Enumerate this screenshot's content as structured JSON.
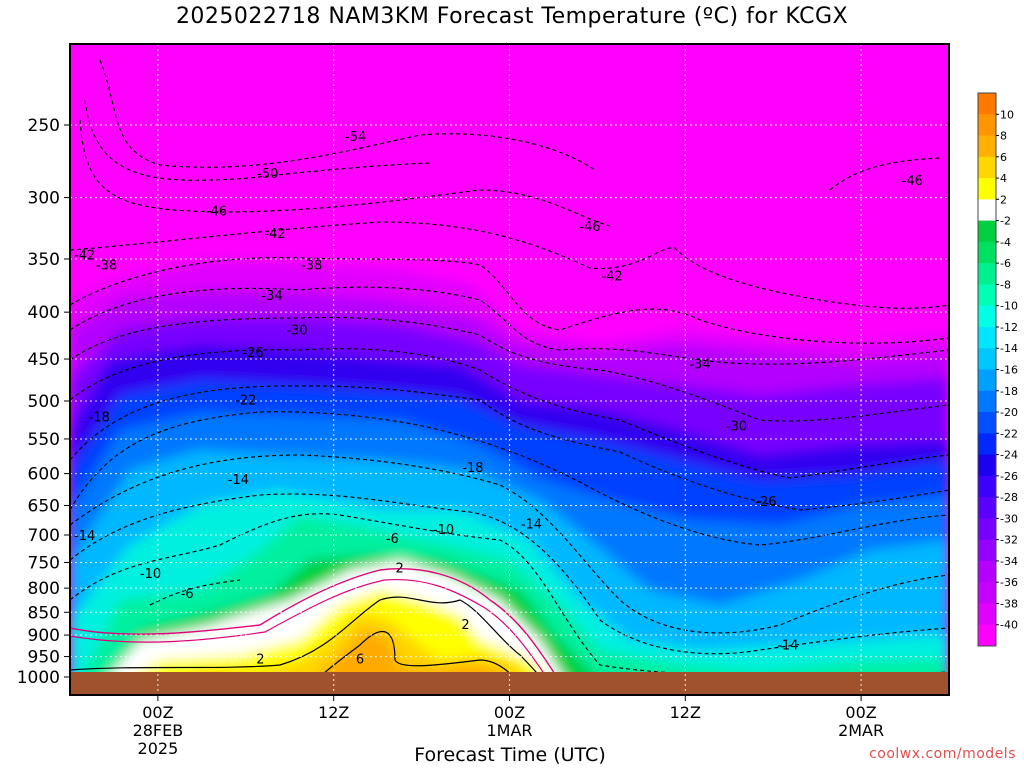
{
  "title": "2025022718 NAM3KM Forecast Temperature (ºC) for KCGX",
  "xlabel": "Forecast Time (UTC)",
  "credit": "coolwx.com/models",
  "chart_data": {
    "type": "heatmap",
    "title": "2025022718 NAM3KM Forecast Temperature (ºC) for KCGX",
    "xlabel": "Forecast Time (UTC)",
    "ylabel": "",
    "x_range_hours": [
      -6,
      54
    ],
    "x_ticks": [
      {
        "hour": 0,
        "label": [
          "00Z",
          "28FEB",
          "2025"
        ]
      },
      {
        "hour": 12,
        "label": [
          "12Z"
        ]
      },
      {
        "hour": 24,
        "label": [
          "00Z",
          "1MAR"
        ]
      },
      {
        "hour": 36,
        "label": [
          "12Z"
        ]
      },
      {
        "hour": 48,
        "label": [
          "00Z",
          "2MAR"
        ]
      }
    ],
    "y_axis": "pressure (hPa), log scale, inverted",
    "y_range": [
      1000,
      200
    ],
    "y_ticks": [
      250,
      300,
      350,
      400,
      450,
      500,
      550,
      600,
      650,
      700,
      750,
      800,
      850,
      900,
      950,
      1000
    ],
    "grid": true,
    "colorbar": {
      "levels": [
        -40,
        -38,
        -36,
        -34,
        -32,
        -30,
        -28,
        -26,
        -24,
        -22,
        -20,
        -18,
        -16,
        -14,
        -12,
        -10,
        -8,
        -6,
        -4,
        -2,
        2,
        4,
        6,
        8,
        10
      ],
      "colors": [
        "#ff00ff",
        "#e100ff",
        "#c800ff",
        "#b400ff",
        "#9600ff",
        "#7800ff",
        "#5a00ff",
        "#3c00ff",
        "#1e00f0",
        "#0028ff",
        "#0050ff",
        "#0078ff",
        "#00a0ff",
        "#00c8ff",
        "#00e6ff",
        "#00ffe6",
        "#00ffb4",
        "#00f090",
        "#00e060",
        "#00d040",
        "#ffffff",
        "#ffff00",
        "#ffd700",
        "#ffb000",
        "#ff9600",
        "#ff7800"
      ]
    },
    "contour_labels": [
      {
        "label": "-54",
        "hour": 13.5,
        "p": 257
      },
      {
        "label": "-50",
        "hour": 7.5,
        "p": 282
      },
      {
        "label": "-46",
        "hour": 4.0,
        "p": 310
      },
      {
        "label": "-46",
        "hour": 29.5,
        "p": 322
      },
      {
        "label": "-46",
        "hour": 51.5,
        "p": 287
      },
      {
        "label": "-42",
        "hour": 8.0,
        "p": 328
      },
      {
        "label": "-42",
        "hour": 31.0,
        "p": 365
      },
      {
        "label": "-42",
        "hour": -5.0,
        "p": 346
      },
      {
        "label": "-38",
        "hour": -3.5,
        "p": 355
      },
      {
        "label": "-38",
        "hour": 10.5,
        "p": 355
      },
      {
        "label": "-34",
        "hour": 7.8,
        "p": 383
      },
      {
        "label": "-34",
        "hour": 37.0,
        "p": 455
      },
      {
        "label": "-30",
        "hour": 9.5,
        "p": 418
      },
      {
        "label": "-30",
        "hour": 39.5,
        "p": 532
      },
      {
        "label": "-26",
        "hour": 6.5,
        "p": 442
      },
      {
        "label": "-26",
        "hour": 41.5,
        "p": 643
      },
      {
        "label": "-22",
        "hour": 6.0,
        "p": 498
      },
      {
        "label": "-18",
        "hour": -4.0,
        "p": 520
      },
      {
        "label": "-18",
        "hour": 21.5,
        "p": 590
      },
      {
        "label": "-14",
        "hour": 5.5,
        "p": 608
      },
      {
        "label": "-14",
        "hour": 25.5,
        "p": 680
      },
      {
        "label": "-14",
        "hour": -5.0,
        "p": 700
      },
      {
        "label": "-14",
        "hour": 43.0,
        "p": 922
      },
      {
        "label": "-10",
        "hour": 19.5,
        "p": 690
      },
      {
        "label": "-10",
        "hour": -0.5,
        "p": 770
      },
      {
        "label": "-6",
        "hour": 2.0,
        "p": 810
      },
      {
        "label": "-6",
        "hour": 16.0,
        "p": 705
      },
      {
        "label": "2",
        "hour": 16.5,
        "p": 760
      },
      {
        "label": "2",
        "hour": 21.0,
        "p": 875
      },
      {
        "label": "2",
        "hour": 7.0,
        "p": 955
      },
      {
        "label": "6",
        "hour": 13.8,
        "p": 955
      }
    ]
  }
}
